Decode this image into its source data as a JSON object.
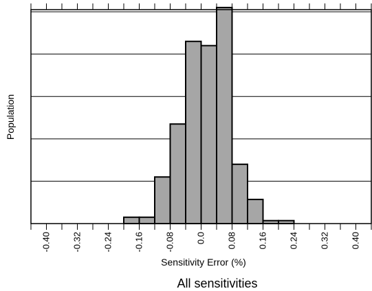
{
  "chart_data": {
    "type": "bar",
    "subtype": "histogram",
    "xlabel": "Sensitivity Error (%)",
    "ylabel": "Population",
    "caption": "All sensitivities",
    "x_tick_labels": [
      "-0.40",
      "-0.32",
      "-0.24",
      "-0.16",
      "-0.08",
      "0.0",
      "0.08",
      "0.16",
      "0.24",
      "0.32",
      "0.40"
    ],
    "x_ticks": [
      -0.4,
      -0.32,
      -0.24,
      -0.16,
      -0.08,
      0.0,
      0.08,
      0.16,
      0.24,
      0.32,
      0.4
    ],
    "xlim": [
      -0.44,
      0.44
    ],
    "ylim": [
      0,
      5.05
    ],
    "y_tick_labels_shown": false,
    "grid": "horizontal",
    "bar_color": "#a6a6a6",
    "bins": [
      {
        "x0": -0.2,
        "x1": -0.16,
        "value": 0.15
      },
      {
        "x0": -0.16,
        "x1": -0.12,
        "value": 0.15
      },
      {
        "x0": -0.12,
        "x1": -0.08,
        "value": 1.1
      },
      {
        "x0": -0.08,
        "x1": -0.04,
        "value": 2.35
      },
      {
        "x0": -0.04,
        "x1": 0.0,
        "value": 4.3
      },
      {
        "x0": 0.0,
        "x1": 0.04,
        "value": 4.2
      },
      {
        "x0": 0.04,
        "x1": 0.08,
        "value": 5.1
      },
      {
        "x0": 0.08,
        "x1": 0.12,
        "value": 1.4
      },
      {
        "x0": 0.12,
        "x1": 0.16,
        "value": 0.57
      },
      {
        "x0": 0.16,
        "x1": 0.2,
        "value": 0.07
      },
      {
        "x0": 0.2,
        "x1": 0.24,
        "value": 0.07
      }
    ]
  }
}
